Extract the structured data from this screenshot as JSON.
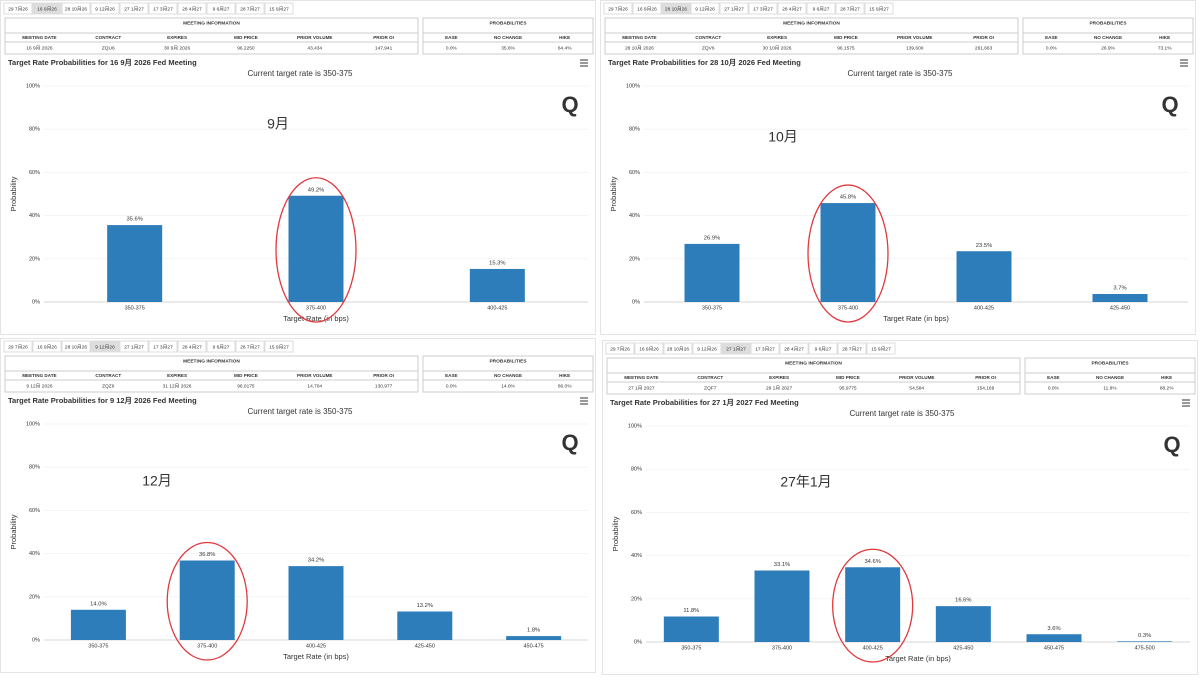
{
  "chart_data": [
    {
      "type": "bar",
      "tabs": [
        "29 7月26",
        "16 9月26",
        "28 10月26",
        "9 12月26",
        "27 1月27",
        "17 3月27",
        "28 4月27",
        "9 6月27",
        "28 7月27",
        "15 9月27"
      ],
      "meeting_info": {
        "title": "MEETING INFORMATION",
        "columns": [
          "MEETING DATE",
          "CONTRACT",
          "EXPIRES",
          "MID PRICE",
          "PRIOR VOLUME",
          "PRIOR OI"
        ],
        "row": [
          "16 9月 2026",
          "ZQU6",
          "30 9月 2026",
          "96.2250",
          "43,434",
          "147,941"
        ]
      },
      "probabilities": {
        "title": "PROBABILITIES",
        "columns": [
          "EASE",
          "NO CHANGE",
          "HIKE"
        ],
        "row": [
          "0.0%",
          "35.6%",
          "64.4%"
        ]
      },
      "title": "Target Rate Probabilities for 16 9月 2026 Fed Meeting",
      "subtitle": "Current target rate is 350-375",
      "y_label": "Probability",
      "x_label": "Target Rate (in bps)",
      "annotation": "9月",
      "categories": [
        "350-375",
        "375-400",
        "400-425"
      ],
      "values": [
        35.6,
        49.2,
        15.3
      ],
      "value_labels": [
        "35.6%",
        "49.2%",
        "15.3%"
      ],
      "color": "#2e7dbb",
      "ylim": [
        0,
        100
      ],
      "yticks": [
        {
          "value": 0,
          "label": "0%"
        },
        {
          "value": 20,
          "label": "20%"
        },
        {
          "value": 40,
          "label": "40%"
        },
        {
          "value": 60,
          "label": "60%"
        },
        {
          "value": 80,
          "label": "80%"
        },
        {
          "value": 100,
          "label": "100%"
        }
      ],
      "grid": true
    },
    {
      "type": "bar",
      "tabs": [
        "29 7月26",
        "16 9月26",
        "28 10月26",
        "9 12月26",
        "27 1月27",
        "17 3月27",
        "28 4月27",
        "9 6月27",
        "28 7月27",
        "15 9月27"
      ],
      "meeting_info": {
        "title": "MEETING INFORMATION",
        "columns": [
          "MEETING DATE",
          "CONTRACT",
          "EXPIRES",
          "MID PRICE",
          "PRIOR VOLUME",
          "PRIOR OI"
        ],
        "row": [
          "28 10月 2026",
          "ZQV6",
          "30 10月 2026",
          "96.1575",
          "139,600",
          "261,663"
        ]
      },
      "probabilities": {
        "title": "PROBABILITIES",
        "columns": [
          "EASE",
          "NO CHANGE",
          "HIKE"
        ],
        "row": [
          "0.0%",
          "26.9%",
          "73.1%"
        ]
      },
      "title": "Target Rate Probabilities for 28 10月 2026 Fed Meeting",
      "subtitle": "Current target rate is 350-375",
      "y_label": "Probability",
      "x_label": "Target Rate (in bps)",
      "annotation": "10月",
      "categories": [
        "350-375",
        "375-400",
        "400-425",
        "425-450"
      ],
      "values": [
        26.9,
        45.8,
        23.5,
        3.7
      ],
      "value_labels": [
        "26.9%",
        "45.8%",
        "23.5%",
        "3.7%"
      ],
      "color": "#2e7dbb",
      "ylim": [
        0,
        100
      ],
      "yticks": [
        {
          "value": 0,
          "label": "0%"
        },
        {
          "value": 20,
          "label": "20%"
        },
        {
          "value": 40,
          "label": "40%"
        },
        {
          "value": 60,
          "label": "60%"
        },
        {
          "value": 80,
          "label": "80%"
        },
        {
          "value": 100,
          "label": "100%"
        }
      ],
      "grid": true
    },
    {
      "type": "bar",
      "tabs": [
        "29 7月26",
        "16 9月26",
        "28 10月26",
        "9 12月26",
        "27 1月27",
        "17 3月27",
        "28 4月27",
        "9 6月27",
        "28 7月27",
        "15 9月27"
      ],
      "meeting_info": {
        "title": "MEETING INFORMATION",
        "columns": [
          "MEETING DATE",
          "CONTRACT",
          "EXPIRES",
          "MID PRICE",
          "PRIOR VOLUME",
          "PRIOR OI"
        ],
        "row": [
          "9 12月 2026",
          "ZQZ6",
          "31 12月 2026",
          "96.0175",
          "14,704",
          "130,977"
        ]
      },
      "probabilities": {
        "title": "PROBABILITIES",
        "columns": [
          "EASE",
          "NO CHANGE",
          "HIKE"
        ],
        "row": [
          "0.0%",
          "14.0%",
          "86.0%"
        ]
      },
      "title": "Target Rate Probabilities for 9 12月 2026 Fed Meeting",
      "subtitle": "Current target rate is 350-375",
      "y_label": "Probability",
      "x_label": "Target Rate (in bps)",
      "annotation": "12月",
      "categories": [
        "350-375",
        "375-400",
        "400-425",
        "425-450",
        "450-475"
      ],
      "values": [
        14.0,
        36.8,
        34.2,
        13.2,
        1.8
      ],
      "value_labels": [
        "14.0%",
        "36.8%",
        "34.2%",
        "13.2%",
        "1.8%"
      ],
      "color": "#2e7dbb",
      "ylim": [
        0,
        100
      ],
      "yticks": [
        {
          "value": 0,
          "label": "0%"
        },
        {
          "value": 20,
          "label": "20%"
        },
        {
          "value": 40,
          "label": "40%"
        },
        {
          "value": 60,
          "label": "60%"
        },
        {
          "value": 80,
          "label": "80%"
        },
        {
          "value": 100,
          "label": "100%"
        }
      ],
      "grid": true
    },
    {
      "type": "bar",
      "tabs": [
        "29 7月26",
        "16 9月26",
        "28 10月26",
        "9 12月26",
        "27 1月27",
        "17 3月27",
        "28 4月27",
        "9 6月27",
        "28 7月27",
        "15 9月27"
      ],
      "meeting_info": {
        "title": "MEETING INFORMATION",
        "columns": [
          "MEETING DATE",
          "CONTRACT",
          "EXPIRES",
          "MID PRICE",
          "PRIOR VOLUME",
          "PRIOR OI"
        ],
        "row": [
          "27 1月 2027",
          "ZQF7",
          "29 1月 2027",
          "95.9775",
          "54,584",
          "154,169"
        ]
      },
      "probabilities": {
        "title": "PROBABILITIES",
        "columns": [
          "EASE",
          "NO CHANGE",
          "HIKE"
        ],
        "row": [
          "0.0%",
          "11.8%",
          "88.2%"
        ]
      },
      "title": "Target Rate Probabilities for 27 1月 2027 Fed Meeting",
      "subtitle": "Current target rate is 350-375",
      "y_label": "Probability",
      "x_label": "Target Rate (in bps)",
      "annotation": "27年1月",
      "categories": [
        "350-375",
        "375-400",
        "400-425",
        "425-450",
        "450-475",
        "475-500"
      ],
      "values": [
        11.8,
        33.1,
        34.6,
        16.6,
        3.6,
        0.3
      ],
      "value_labels": [
        "11.8%",
        "33.1%",
        "34.6%",
        "16.6%",
        "3.6%",
        "0.3%"
      ],
      "color": "#2e7dbb",
      "ylim": [
        0,
        100
      ],
      "yticks": [
        {
          "value": 0,
          "label": "0%"
        },
        {
          "value": 20,
          "label": "20%"
        },
        {
          "value": 40,
          "label": "40%"
        },
        {
          "value": 60,
          "label": "60%"
        },
        {
          "value": 80,
          "label": "80%"
        },
        {
          "value": 100,
          "label": "100%"
        }
      ],
      "grid": true
    }
  ]
}
